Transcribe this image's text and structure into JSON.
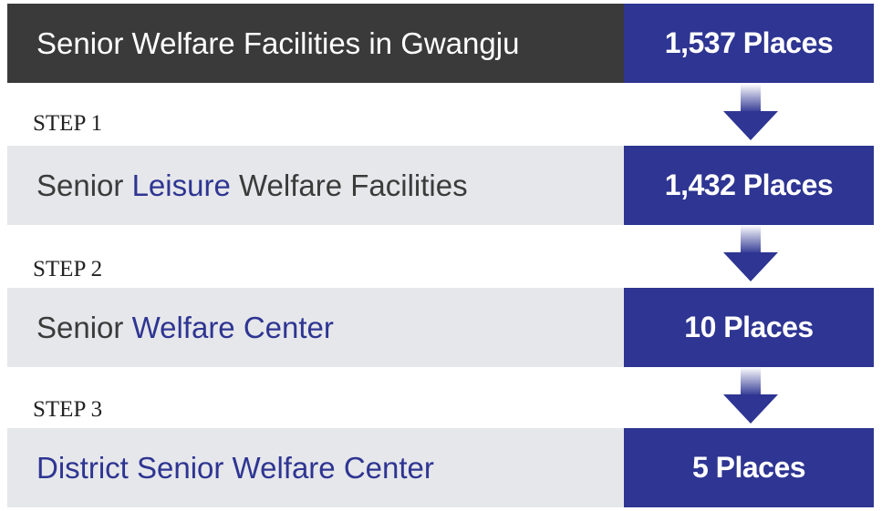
{
  "top": {
    "label": "Senior Welfare Facilities in Gwangju",
    "value": "1,537 Places"
  },
  "steps": [
    {
      "caption": "STEP 1",
      "label_before": "Senior ",
      "label_highlight": "Leisure",
      "label_after": " Welfare Facilities",
      "value": "1,432 Places"
    },
    {
      "caption": "STEP 2",
      "label_before": "Senior ",
      "label_highlight": "Welfare Center",
      "label_after": "",
      "value": "10 Places"
    },
    {
      "caption": "STEP 3",
      "label_before": "",
      "label_highlight": "District Senior Welfare Center",
      "label_after": "",
      "value": "5 Places"
    }
  ],
  "colors": {
    "accent_blue": "#2e3592",
    "dark_header": "#3a3a3a",
    "row_gray": "#e6e7ea"
  },
  "icons": {
    "flow_arrow": "arrow-down-icon"
  }
}
